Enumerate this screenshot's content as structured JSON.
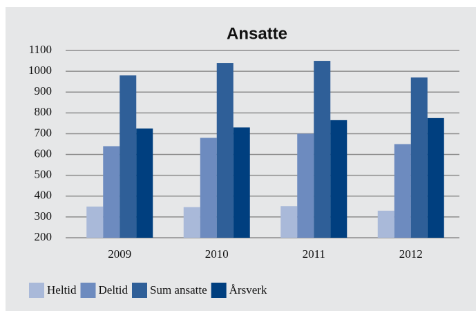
{
  "chart_data": {
    "type": "bar",
    "title": "Ansatte",
    "categories": [
      "2009",
      "2010",
      "2011",
      "2012"
    ],
    "series": [
      {
        "name": "Heltid",
        "color": "#a9b9d9",
        "values": [
          350,
          347,
          352,
          330
        ]
      },
      {
        "name": "Deltid",
        "color": "#6d8bbf",
        "values": [
          640,
          680,
          700,
          650
        ]
      },
      {
        "name": "Sum ansatte",
        "color": "#2f5f98",
        "values": [
          980,
          1040,
          1050,
          970
        ]
      },
      {
        "name": "Årsverk",
        "color": "#003f7f",
        "values": [
          725,
          730,
          765,
          775
        ]
      }
    ],
    "ylim": [
      200,
      1100
    ],
    "yticks": [
      200,
      300,
      400,
      500,
      600,
      700,
      800,
      900,
      1000,
      1100
    ],
    "grid": true,
    "legend": "bottom"
  }
}
